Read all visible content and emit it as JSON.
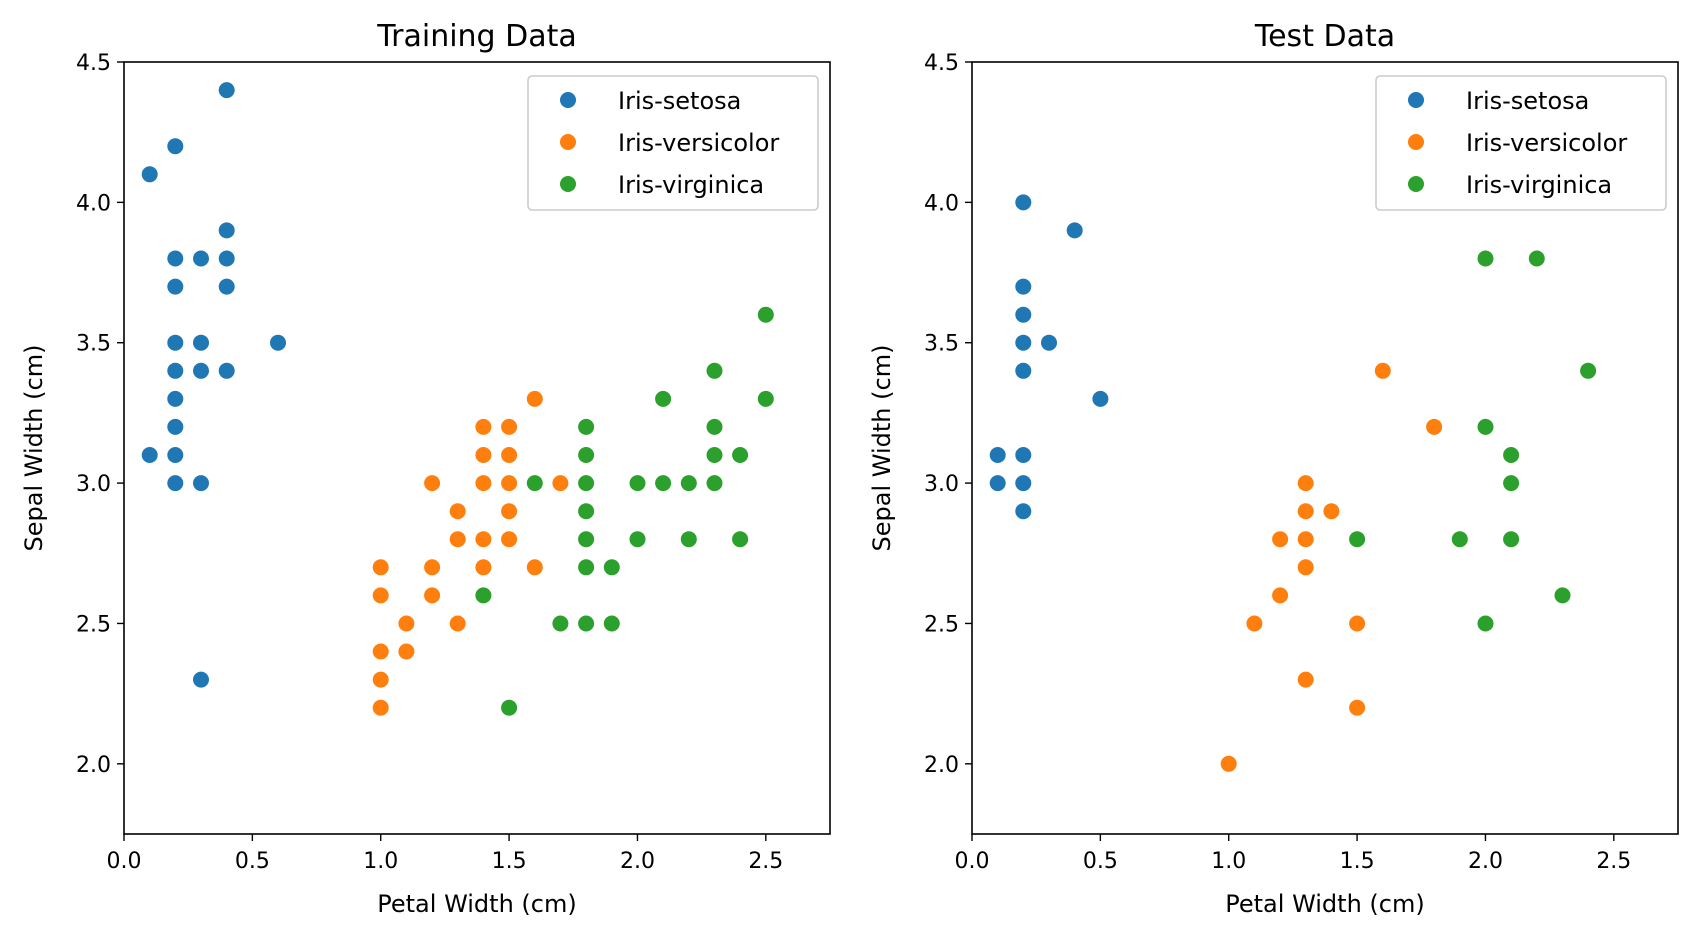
{
  "chart_data": [
    {
      "type": "scatter",
      "title": "Training Data",
      "xlabel": "Petal Width (cm)",
      "ylabel": "Sepal Width (cm)",
      "xlim": [
        0.0,
        2.75
      ],
      "ylim": [
        1.75,
        4.5
      ],
      "xticks": [
        "0.0",
        "0.5",
        "1.0",
        "1.5",
        "2.0",
        "2.5"
      ],
      "yticks": [
        "2.0",
        "2.5",
        "3.0",
        "3.5",
        "4.0",
        "4.5"
      ],
      "grid": false,
      "legend_position": "top-right",
      "series": [
        {
          "name": "Iris-setosa",
          "color": "#1f77b4",
          "points": [
            [
              0.1,
              4.1
            ],
            [
              0.1,
              3.1
            ],
            [
              0.2,
              4.2
            ],
            [
              0.2,
              3.8
            ],
            [
              0.2,
              3.7
            ],
            [
              0.2,
              3.5
            ],
            [
              0.2,
              3.4
            ],
            [
              0.2,
              3.3
            ],
            [
              0.2,
              3.2
            ],
            [
              0.2,
              3.1
            ],
            [
              0.2,
              3.0
            ],
            [
              0.3,
              3.8
            ],
            [
              0.3,
              3.5
            ],
            [
              0.3,
              3.4
            ],
            [
              0.3,
              3.0
            ],
            [
              0.3,
              2.3
            ],
            [
              0.4,
              4.4
            ],
            [
              0.4,
              3.9
            ],
            [
              0.4,
              3.8
            ],
            [
              0.4,
              3.7
            ],
            [
              0.4,
              3.4
            ],
            [
              0.6,
              3.5
            ]
          ]
        },
        {
          "name": "Iris-versicolor",
          "color": "#ff7f0e",
          "points": [
            [
              1.0,
              2.7
            ],
            [
              1.0,
              2.6
            ],
            [
              1.0,
              2.4
            ],
            [
              1.0,
              2.3
            ],
            [
              1.0,
              2.2
            ],
            [
              1.1,
              2.5
            ],
            [
              1.1,
              2.4
            ],
            [
              1.2,
              3.0
            ],
            [
              1.2,
              2.7
            ],
            [
              1.2,
              2.6
            ],
            [
              1.3,
              2.9
            ],
            [
              1.3,
              2.8
            ],
            [
              1.3,
              2.5
            ],
            [
              1.4,
              3.2
            ],
            [
              1.4,
              3.1
            ],
            [
              1.4,
              3.0
            ],
            [
              1.4,
              2.8
            ],
            [
              1.4,
              2.7
            ],
            [
              1.5,
              3.2
            ],
            [
              1.5,
              3.1
            ],
            [
              1.5,
              3.0
            ],
            [
              1.5,
              2.9
            ],
            [
              1.5,
              2.8
            ],
            [
              1.6,
              3.3
            ],
            [
              1.6,
              2.7
            ],
            [
              1.7,
              3.0
            ]
          ]
        },
        {
          "name": "Iris-virginica",
          "color": "#2ca02c",
          "points": [
            [
              1.4,
              2.6
            ],
            [
              1.5,
              2.2
            ],
            [
              1.6,
              3.0
            ],
            [
              1.7,
              2.5
            ],
            [
              1.8,
              3.2
            ],
            [
              1.8,
              3.1
            ],
            [
              1.8,
              3.0
            ],
            [
              1.8,
              2.9
            ],
            [
              1.8,
              2.8
            ],
            [
              1.8,
              2.7
            ],
            [
              1.8,
              2.5
            ],
            [
              1.9,
              2.7
            ],
            [
              1.9,
              2.5
            ],
            [
              2.0,
              3.0
            ],
            [
              2.0,
              2.8
            ],
            [
              2.1,
              3.3
            ],
            [
              2.1,
              3.0
            ],
            [
              2.2,
              3.0
            ],
            [
              2.2,
              2.8
            ],
            [
              2.3,
              3.4
            ],
            [
              2.3,
              3.2
            ],
            [
              2.3,
              3.1
            ],
            [
              2.3,
              3.0
            ],
            [
              2.4,
              3.1
            ],
            [
              2.4,
              2.8
            ],
            [
              2.5,
              3.6
            ],
            [
              2.5,
              3.3
            ]
          ]
        }
      ]
    },
    {
      "type": "scatter",
      "title": "Test Data",
      "xlabel": "Petal Width (cm)",
      "ylabel": "Sepal Width (cm)",
      "xlim": [
        0.0,
        2.75
      ],
      "ylim": [
        1.75,
        4.5
      ],
      "xticks": [
        "0.0",
        "0.5",
        "1.0",
        "1.5",
        "2.0",
        "2.5"
      ],
      "yticks": [
        "2.0",
        "2.5",
        "3.0",
        "3.5",
        "4.0",
        "4.5"
      ],
      "grid": false,
      "legend_position": "top-right",
      "series": [
        {
          "name": "Iris-setosa",
          "color": "#1f77b4",
          "points": [
            [
              0.1,
              3.1
            ],
            [
              0.1,
              3.0
            ],
            [
              0.2,
              4.0
            ],
            [
              0.2,
              3.7
            ],
            [
              0.2,
              3.6
            ],
            [
              0.2,
              3.5
            ],
            [
              0.2,
              3.4
            ],
            [
              0.2,
              3.1
            ],
            [
              0.2,
              3.0
            ],
            [
              0.2,
              2.9
            ],
            [
              0.3,
              3.5
            ],
            [
              0.4,
              3.9
            ],
            [
              0.5,
              3.3
            ]
          ]
        },
        {
          "name": "Iris-versicolor",
          "color": "#ff7f0e",
          "points": [
            [
              1.0,
              2.0
            ],
            [
              1.1,
              2.5
            ],
            [
              1.2,
              2.8
            ],
            [
              1.2,
              2.6
            ],
            [
              1.3,
              3.0
            ],
            [
              1.3,
              2.9
            ],
            [
              1.3,
              2.8
            ],
            [
              1.3,
              2.7
            ],
            [
              1.3,
              2.3
            ],
            [
              1.4,
              2.9
            ],
            [
              1.5,
              2.5
            ],
            [
              1.5,
              2.2
            ],
            [
              1.6,
              3.4
            ],
            [
              1.8,
              3.2
            ]
          ]
        },
        {
          "name": "Iris-virginica",
          "color": "#2ca02c",
          "points": [
            [
              1.5,
              2.8
            ],
            [
              1.9,
              2.8
            ],
            [
              2.0,
              3.8
            ],
            [
              2.0,
              3.2
            ],
            [
              2.0,
              2.5
            ],
            [
              2.1,
              3.1
            ],
            [
              2.1,
              3.0
            ],
            [
              2.1,
              2.8
            ],
            [
              2.2,
              3.8
            ],
            [
              2.3,
              2.6
            ],
            [
              2.4,
              3.4
            ]
          ]
        }
      ]
    }
  ]
}
